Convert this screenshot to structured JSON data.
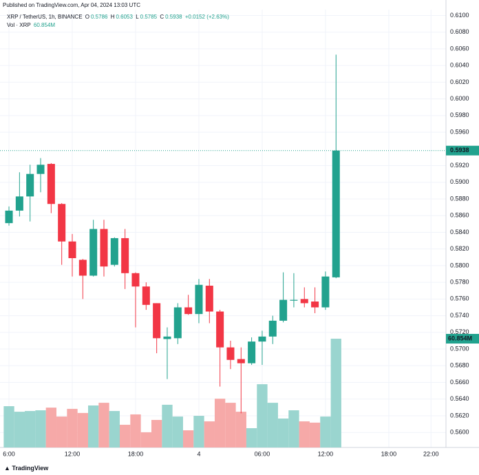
{
  "chart_data": {
    "type": "candlestick",
    "published": "Published on TradingView.com, Apr 04, 2024 13:03 UTC",
    "symbol": "XRP / TetherUS, 1h, BINANCE",
    "o_label": "O",
    "h_label": "H",
    "l_label": "L",
    "c_label": "C",
    "change": "+0.0152 (+2.63%)",
    "volume_title": "Vol · XRP",
    "volume_label": "60.854M",
    "brand": "TradingView",
    "up_color": "#22a28e",
    "down_color": "#f23645",
    "volume_up_color": "#9ad5cf",
    "volume_down_color": "#f6a9a8",
    "open": [
      0.5851,
      0.5866,
      0.5883,
      0.591,
      0.5922,
      0.5874,
      0.5829,
      0.5807,
      0.5788,
      0.5844,
      0.5801,
      0.5833,
      0.5791,
      0.5775,
      0.5755,
      0.5712,
      0.5713,
      0.575,
      0.5742,
      0.5776,
      0.5745,
      0.5702,
      0.5688,
      0.5683,
      0.5709,
      0.5715,
      0.5734,
      0.5758,
      0.576,
      0.5757,
      0.575,
      0.5786
    ],
    "high": [
      0.5871,
      0.5912,
      0.5921,
      0.5929,
      0.5923,
      0.5875,
      0.5838,
      0.5808,
      0.5855,
      0.5855,
      0.5834,
      0.5844,
      0.5792,
      0.578,
      0.5755,
      0.5726,
      0.5755,
      0.5765,
      0.5784,
      0.5784,
      0.5747,
      0.571,
      0.5702,
      0.5714,
      0.5722,
      0.574,
      0.5792,
      0.5791,
      0.5774,
      0.5774,
      0.5793,
      0.6053
    ],
    "low": [
      0.5848,
      0.5859,
      0.5853,
      0.5888,
      0.5863,
      0.5801,
      0.5787,
      0.576,
      0.5787,
      0.5787,
      0.5799,
      0.5772,
      0.5726,
      0.5747,
      0.5695,
      0.5664,
      0.5706,
      0.5741,
      0.5731,
      0.5731,
      0.5655,
      0.5676,
      0.5623,
      0.5681,
      0.5681,
      0.5706,
      0.5732,
      0.575,
      0.575,
      0.5743,
      0.5747,
      0.5785
    ],
    "close": [
      0.5866,
      0.5883,
      0.591,
      0.5921,
      0.5874,
      0.5829,
      0.5809,
      0.5788,
      0.5844,
      0.5799,
      0.5833,
      0.5791,
      0.5775,
      0.5753,
      0.5713,
      0.5715,
      0.575,
      0.5742,
      0.5777,
      0.5745,
      0.5702,
      0.5687,
      0.5683,
      0.5709,
      0.5715,
      0.5734,
      0.5759,
      0.5759,
      0.5755,
      0.575,
      0.5787,
      0.5938
    ],
    "volume": [
      23.1,
      20.0,
      20.4,
      20.8,
      22.3,
      17.3,
      21.6,
      19.3,
      23.5,
      25.0,
      20.4,
      12.7,
      18.5,
      8.5,
      15.4,
      23.9,
      17.3,
      9.6,
      17.7,
      14.6,
      27.3,
      25.0,
      20.0,
      10.8,
      35.4,
      25.0,
      16.2,
      20.8,
      14.6,
      13.9,
      17.3,
      60.854
    ],
    "xlim": [
      -0.85,
      41.42
    ],
    "xticks": [
      {
        "value": 0,
        "label": "6:00"
      },
      {
        "value": 6,
        "label": "12:00"
      },
      {
        "value": 12,
        "label": "18:00"
      },
      {
        "value": 18,
        "label": "4"
      },
      {
        "value": 24,
        "label": "06:00"
      },
      {
        "value": 30,
        "label": "12:00"
      },
      {
        "value": 36,
        "label": "18:00"
      },
      {
        "value": 40,
        "label": "22:00"
      }
    ],
    "ylim": [
      0.5582,
      0.6107
    ],
    "yticks": [
      {
        "value": 0.56,
        "label": "0.5600"
      },
      {
        "value": 0.562,
        "label": "0.5620"
      },
      {
        "value": 0.564,
        "label": "0.5640"
      },
      {
        "value": 0.566,
        "label": "0.5660"
      },
      {
        "value": 0.568,
        "label": "0.5680"
      },
      {
        "value": 0.57,
        "label": "0.5700"
      },
      {
        "value": 0.572,
        "label": "0.5720"
      },
      {
        "value": 0.574,
        "label": "0.5740"
      },
      {
        "value": 0.576,
        "label": "0.5760"
      },
      {
        "value": 0.578,
        "label": "0.5780"
      },
      {
        "value": 0.58,
        "label": "0.5800"
      },
      {
        "value": 0.582,
        "label": "0.5820"
      },
      {
        "value": 0.584,
        "label": "0.5840"
      },
      {
        "value": 0.586,
        "label": "0.5860"
      },
      {
        "value": 0.588,
        "label": "0.5880"
      },
      {
        "value": 0.59,
        "label": "0.5900"
      },
      {
        "value": 0.592,
        "label": "0.5920"
      },
      {
        "value": 0.596,
        "label": "0.5960"
      },
      {
        "value": 0.598,
        "label": "0.5980"
      },
      {
        "value": 0.6,
        "label": "0.6000"
      },
      {
        "value": 0.602,
        "label": "0.6020"
      },
      {
        "value": 0.604,
        "label": "0.6040"
      },
      {
        "value": 0.606,
        "label": "0.6060"
      },
      {
        "value": 0.608,
        "label": "0.6080"
      },
      {
        "value": 0.61,
        "label": "0.6100"
      }
    ],
    "volume_ylim": [
      0,
      245
    ],
    "grid": true
  }
}
